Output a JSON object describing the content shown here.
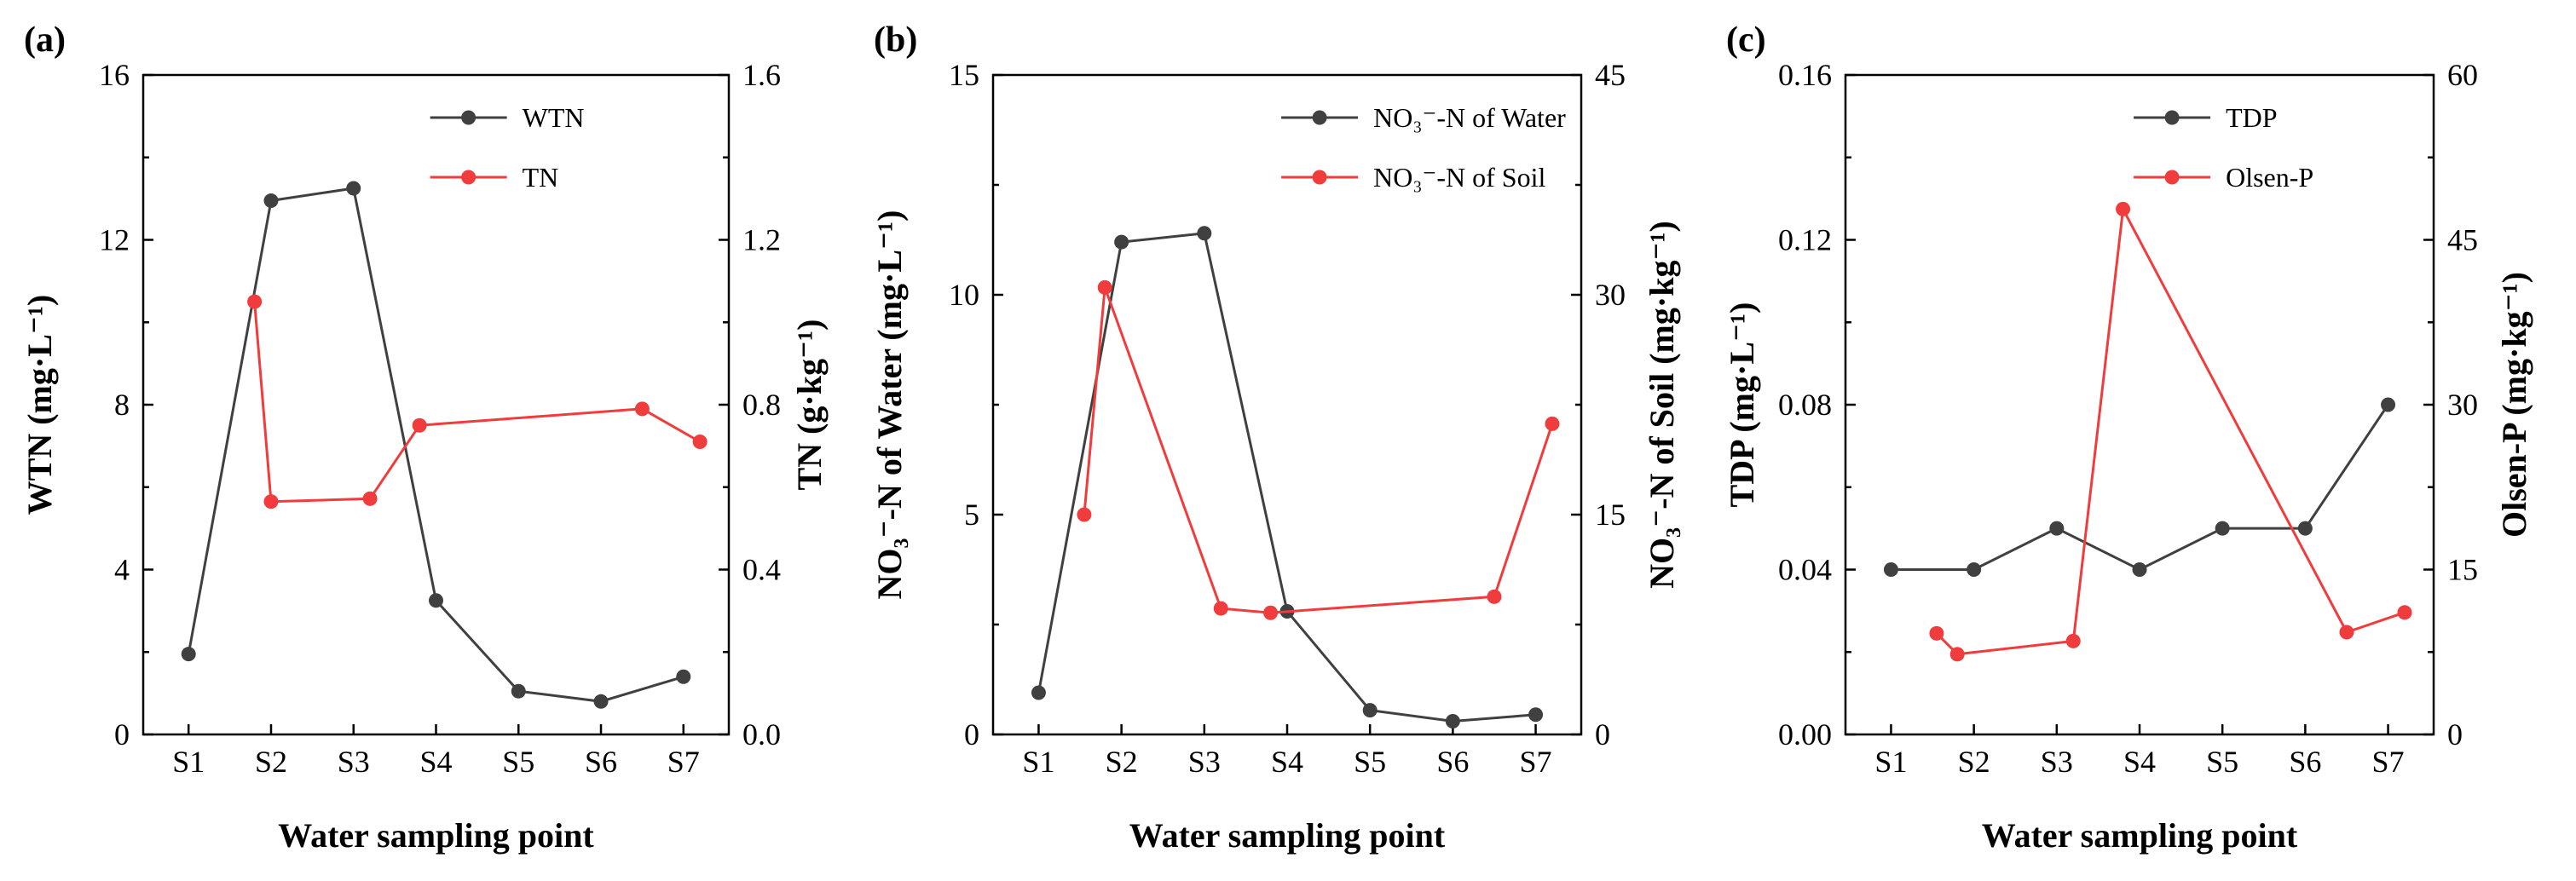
{
  "colors": {
    "black_series": "#404040",
    "red_series": "#f03c3c",
    "axis": "#000000"
  },
  "chart_data": [
    {
      "type": "line",
      "panel_label": "(a)",
      "categories": [
        "S1",
        "S2",
        "S3",
        "S4",
        "S5",
        "S6",
        "S7"
      ],
      "xlabel": "Water sampling point",
      "ylabel_left": "WTN (mg·L⁻¹)",
      "ylabel_right": "TN (g·kg⁻¹)",
      "ylim_left": [
        0,
        16
      ],
      "ylim_right": [
        0,
        1.6
      ],
      "yticks_left": [
        "0",
        "4",
        "8",
        "12",
        "16"
      ],
      "yticks_right": [
        "0.0",
        "0.4",
        "0.8",
        "1.2",
        "1.6"
      ],
      "series": [
        {
          "name": "WTN",
          "axis": "left",
          "color": "#404040",
          "x": [
            1,
            2,
            3,
            4,
            5,
            6,
            7
          ],
          "values": [
            1.95,
            12.95,
            13.25,
            3.25,
            1.05,
            0.8,
            1.4
          ]
        },
        {
          "name": "TN",
          "axis": "right",
          "color": "#f03c3c",
          "x": [
            1.8,
            2,
            3.2,
            3.8,
            6.5,
            7.2
          ],
          "values": [
            1.05,
            0.565,
            0.572,
            0.75,
            0.79,
            0.71
          ]
        }
      ],
      "legend_position": "top-right"
    },
    {
      "type": "line",
      "panel_label": "(b)",
      "categories": [
        "S1",
        "S2",
        "S3",
        "S4",
        "S5",
        "S6",
        "S7"
      ],
      "xlabel": "Water sampling point",
      "ylabel_left": "NO₃⁻-N of Water (mg·L⁻¹)",
      "ylabel_right": "NO₃⁻-N of Soil (mg·kg⁻¹)",
      "ylim_left": [
        0,
        15
      ],
      "ylim_right": [
        0,
        45
      ],
      "yticks_left": [
        "0",
        "5",
        "10",
        "15"
      ],
      "yticks_right": [
        "0",
        "15",
        "30",
        "45"
      ],
      "series": [
        {
          "name": "NO₃⁻-N of Water",
          "axis": "left",
          "color": "#404040",
          "x": [
            1,
            2,
            3,
            4,
            5,
            6,
            7
          ],
          "values": [
            0.95,
            11.2,
            11.4,
            2.8,
            0.55,
            0.3,
            0.45
          ]
        },
        {
          "name": "NO₃⁻-N of Soil",
          "axis": "right",
          "color": "#f03c3c",
          "x": [
            1.55,
            1.8,
            3.2,
            3.8,
            6.5,
            7.2
          ],
          "values": [
            15.0,
            30.5,
            8.6,
            8.3,
            9.4,
            21.2
          ]
        }
      ],
      "legend_position": "top-right"
    },
    {
      "type": "line",
      "panel_label": "(c)",
      "categories": [
        "S1",
        "S2",
        "S3",
        "S4",
        "S5",
        "S6",
        "S7"
      ],
      "xlabel": "Water sampling point",
      "ylabel_left": "TDP (mg·L⁻¹)",
      "ylabel_right": "Olsen-P (mg·kg⁻¹)",
      "ylim_left": [
        0,
        0.16
      ],
      "ylim_right": [
        0,
        60
      ],
      "yticks_left": [
        "0.00",
        "0.04",
        "0.08",
        "0.12",
        "0.16"
      ],
      "yticks_right": [
        "0",
        "15",
        "30",
        "45",
        "60"
      ],
      "series": [
        {
          "name": "TDP",
          "axis": "left",
          "color": "#404040",
          "x": [
            1,
            2,
            3,
            4,
            5,
            6,
            7
          ],
          "values": [
            0.04,
            0.04,
            0.05,
            0.04,
            0.05,
            0.05,
            0.08
          ]
        },
        {
          "name": "Olsen-P",
          "axis": "right",
          "color": "#f03c3c",
          "x": [
            1.55,
            1.8,
            3.2,
            3.8,
            6.5,
            7.2
          ],
          "values": [
            9.2,
            7.3,
            8.5,
            47.8,
            9.3,
            11.1
          ]
        }
      ],
      "legend_position": "top-right"
    }
  ]
}
